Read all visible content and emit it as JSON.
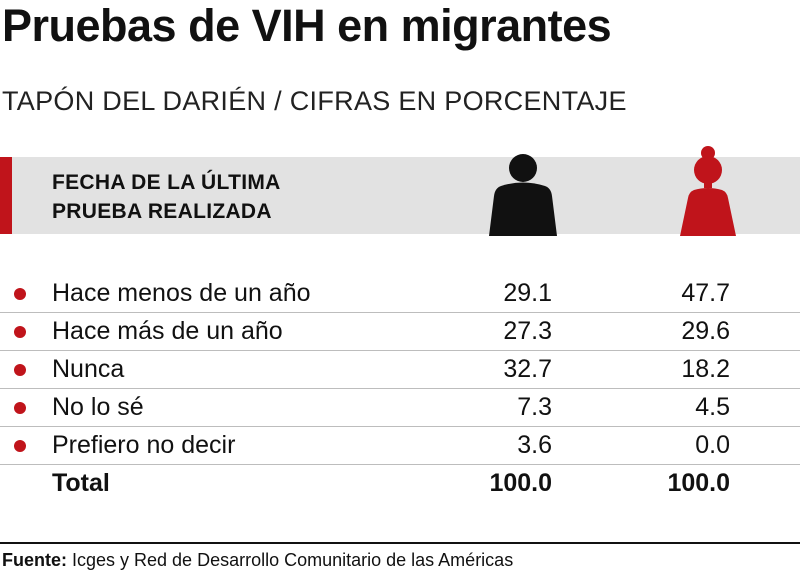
{
  "title": "Pruebas de VIH en migrantes",
  "subtitle": "TAPÓN DEL DARIÉN / CIFRAS EN PORCENTAJE",
  "header": {
    "line1": "FECHA DE LA ÚLTIMA",
    "line2": "PRUEBA REALIZADA",
    "male_icon": "man-icon",
    "female_icon": "woman-icon"
  },
  "colors": {
    "accent": "#c0141b",
    "band": "#e2e2e2",
    "male_icon": "#111111",
    "female_icon": "#c0141b"
  },
  "chart_data": {
    "type": "table",
    "title": "Pruebas de VIH en migrantes",
    "subtitle": "TAPÓN DEL DARIÉN / CIFRAS EN PORCENTAJE",
    "row_header": "FECHA DE LA ÚLTIMA PRUEBA REALIZADA",
    "rows": [
      {
        "label": "Hace menos de un año",
        "men": "29.1",
        "women": "47.7"
      },
      {
        "label": "Hace más de un año",
        "men": "27.3",
        "women": "29.6"
      },
      {
        "label": "Nunca",
        "men": "32.7",
        "women": "18.2"
      },
      {
        "label": "No lo sé",
        "men": "7.3",
        "women": "4.5"
      },
      {
        "label": "Prefiero no decir",
        "men": "3.6",
        "women": "0.0"
      }
    ],
    "total": {
      "label": "Total",
      "men": "100.0",
      "women": "100.0"
    }
  },
  "source": {
    "label": "Fuente:",
    "text": " Icges y Red de Desarrollo Comunitario de las Américas"
  }
}
